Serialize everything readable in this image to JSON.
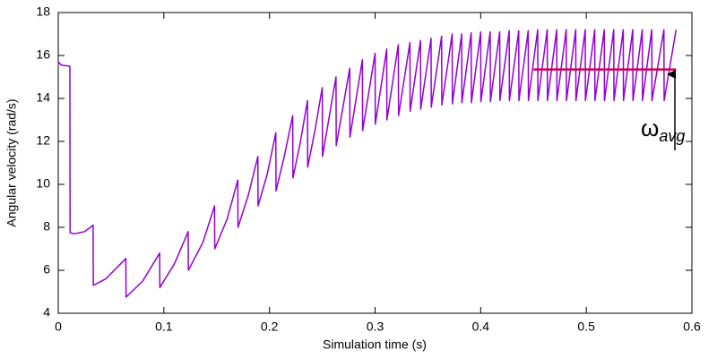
{
  "chart_data": {
    "type": "line",
    "x_label": "Simulation time (s)",
    "y_label": "Angular velocity (rad/s)",
    "xlim": [
      0,
      0.6
    ],
    "ylim": [
      4,
      18
    ],
    "xticks": [
      0,
      0.1,
      0.2,
      0.3,
      0.4,
      0.5,
      0.6
    ],
    "yticks": [
      4,
      6,
      8,
      10,
      12,
      14,
      16,
      18
    ],
    "grid": false,
    "annotation": {
      "symbol": "ω",
      "subscript": "avg"
    },
    "series": [
      {
        "color": "#9400d3",
        "x": [
          0,
          0.003,
          0.011,
          0.0112,
          0.015,
          0.025,
          0.033,
          0.0332,
          0.045,
          0.064,
          0.0642,
          0.08,
          0.096,
          0.0962,
          0.11,
          0.123,
          0.1232,
          0.137,
          0.148,
          0.1482,
          0.16,
          0.17,
          0.1702,
          0.18,
          0.189,
          0.1892,
          0.198,
          0.206,
          0.2062,
          0.214,
          0.222,
          0.2222,
          0.229,
          0.236,
          0.2362,
          0.243,
          0.25,
          0.2502,
          0.263,
          0.2632,
          0.276,
          0.2762,
          0.288,
          0.2882,
          0.3,
          0.3002,
          0.311,
          0.3112,
          0.322,
          0.3222,
          0.333,
          0.3332,
          0.343,
          0.3432,
          0.353,
          0.3532,
          0.363,
          0.3632,
          0.373,
          0.3732,
          0.382,
          0.3822,
          0.391,
          0.3912,
          0.4,
          0.4002,
          0.409,
          0.4092,
          0.418,
          0.4182,
          0.427,
          0.4272,
          0.436,
          0.4362,
          0.445,
          0.4452,
          0.454,
          0.4542,
          0.463,
          0.4632,
          0.472,
          0.4722,
          0.481,
          0.4812,
          0.49,
          0.4902,
          0.499,
          0.4992,
          0.508,
          0.5082,
          0.517,
          0.5172,
          0.526,
          0.5262,
          0.535,
          0.5352,
          0.544,
          0.5442,
          0.553,
          0.5532,
          0.562,
          0.5622,
          0.5735,
          0.5737,
          0.585
        ],
        "values": [
          15.7,
          15.55,
          15.5,
          7.75,
          7.7,
          7.8,
          8.1,
          5.3,
          5.6,
          6.55,
          4.75,
          5.5,
          6.8,
          5.2,
          6.3,
          7.8,
          6.0,
          7.3,
          9.0,
          7.0,
          8.4,
          10.2,
          8.0,
          9.5,
          11.3,
          9.0,
          10.5,
          12.4,
          9.7,
          11.3,
          13.2,
          10.3,
          11.9,
          13.9,
          10.8,
          12.5,
          14.5,
          11.3,
          15.0,
          11.8,
          15.4,
          12.2,
          15.8,
          12.5,
          16.1,
          12.8,
          16.3,
          13.0,
          16.5,
          13.2,
          16.6,
          13.4,
          16.7,
          13.5,
          16.8,
          13.6,
          16.9,
          13.7,
          17.0,
          13.75,
          17.0,
          13.8,
          17.05,
          13.8,
          17.1,
          13.85,
          17.1,
          13.85,
          17.1,
          13.9,
          17.15,
          13.9,
          17.15,
          13.9,
          17.15,
          13.9,
          17.2,
          13.9,
          17.2,
          13.9,
          17.2,
          13.9,
          17.2,
          13.9,
          17.2,
          13.9,
          17.2,
          13.9,
          17.2,
          13.9,
          17.2,
          13.9,
          17.2,
          13.9,
          17.2,
          13.9,
          17.2,
          13.9,
          17.2,
          13.9,
          17.2,
          13.9,
          17.2,
          13.9,
          17.2
        ]
      },
      {
        "color": "#cc0055",
        "x": [
          0.45,
          0.585
        ],
        "values": [
          15.35,
          15.35
        ]
      }
    ]
  }
}
